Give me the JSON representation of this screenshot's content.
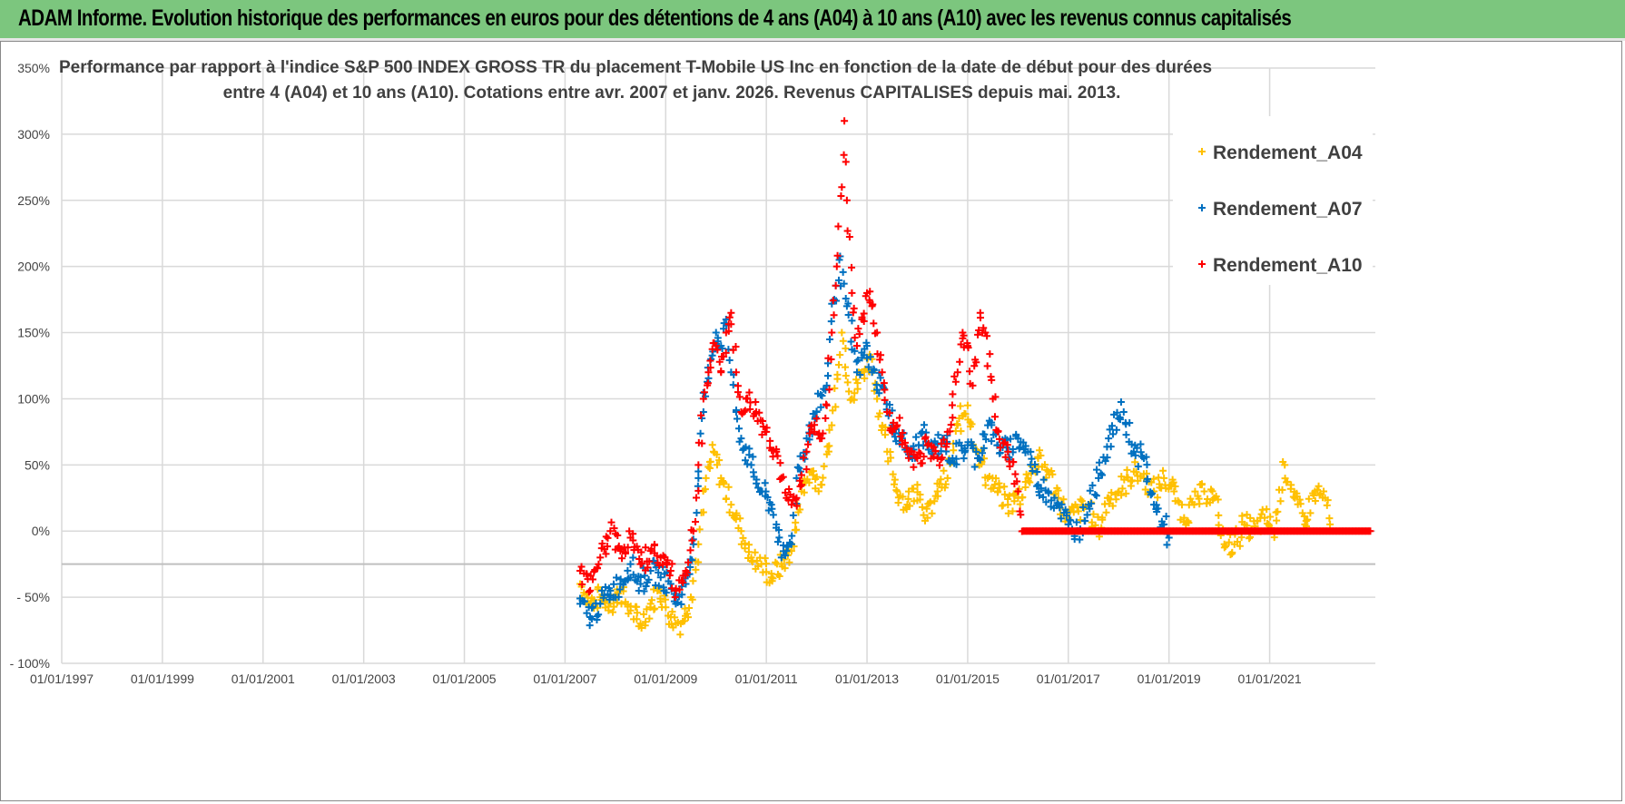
{
  "banner": {
    "title": "ADAM Informe. Evolution historique des performances en euros pour des détentions de 4 ans (A04) à 10 ans (A10) avec les revenus connus capitalisés"
  },
  "chart_data": {
    "type": "scatter",
    "title_lines": [
      "Performance par rapport à l'indice S&P 500 INDEX GROSS TR  du placement T-Mobile US Inc en fonction de la date de début pour des durées",
      "entre 4 (A04) et 10 ans (A10).  Cotations entre avr. 2007 et janv. 2026. Revenus CAPITALISES depuis mai. 2013."
    ],
    "xlabel": "",
    "ylabel": "",
    "xlim": [
      1997,
      2023.1
    ],
    "ylim": [
      -100,
      350
    ],
    "x_ticks": [
      {
        "v": 1997,
        "label": "01/01/1997"
      },
      {
        "v": 1999,
        "label": "01/01/1999"
      },
      {
        "v": 2001,
        "label": "01/01/2001"
      },
      {
        "v": 2003,
        "label": "01/01/2003"
      },
      {
        "v": 2005,
        "label": "01/01/2005"
      },
      {
        "v": 2007,
        "label": "01/01/2007"
      },
      {
        "v": 2009,
        "label": "01/01/2009"
      },
      {
        "v": 2011,
        "label": "01/01/2011"
      },
      {
        "v": 2013,
        "label": "01/01/2013"
      },
      {
        "v": 2015,
        "label": "01/01/2015"
      },
      {
        "v": 2017,
        "label": "01/01/2017"
      },
      {
        "v": 2019,
        "label": "01/01/2019"
      },
      {
        "v": 2021,
        "label": "01/01/2021"
      }
    ],
    "y_ticks": [
      {
        "v": 350,
        "label": "350%"
      },
      {
        "v": 300,
        "label": "300%"
      },
      {
        "v": 250,
        "label": "250%"
      },
      {
        "v": 200,
        "label": "200%"
      },
      {
        "v": 150,
        "label": "150%"
      },
      {
        "v": 100,
        "label": "100%"
      },
      {
        "v": 50,
        "label": "50%"
      },
      {
        "v": 0,
        "label": "0%"
      },
      {
        "v": -50,
        "label": "- 50%"
      },
      {
        "v": -100,
        "label": "- 100%"
      }
    ],
    "axis_cross_value": -25,
    "grid": true,
    "legend_position": "top-right",
    "series": [
      {
        "name": "Rendement_A04",
        "color": "#ffc000",
        "points": [
          [
            2007.3,
            -40
          ],
          [
            2007.5,
            -55
          ],
          [
            2007.7,
            -50
          ],
          [
            2007.9,
            -55
          ],
          [
            2008.1,
            -45
          ],
          [
            2008.3,
            -60
          ],
          [
            2008.5,
            -70
          ],
          [
            2008.7,
            -55
          ],
          [
            2008.9,
            -45
          ],
          [
            2009.1,
            -65
          ],
          [
            2009.3,
            -70
          ],
          [
            2009.5,
            -50
          ],
          [
            2009.65,
            -10
          ],
          [
            2009.8,
            40
          ],
          [
            2009.95,
            60
          ],
          [
            2010.1,
            40
          ],
          [
            2010.3,
            20
          ],
          [
            2010.5,
            0
          ],
          [
            2010.7,
            -20
          ],
          [
            2010.9,
            -25
          ],
          [
            2011.1,
            -35
          ],
          [
            2011.3,
            -25
          ],
          [
            2011.5,
            -15
          ],
          [
            2011.7,
            30
          ],
          [
            2011.9,
            45
          ],
          [
            2012.1,
            35
          ],
          [
            2012.3,
            80
          ],
          [
            2012.5,
            150
          ],
          [
            2012.7,
            100
          ],
          [
            2012.9,
            120
          ],
          [
            2013.1,
            130
          ],
          [
            2013.2,
            100
          ],
          [
            2013.4,
            60
          ],
          [
            2013.6,
            30
          ],
          [
            2013.8,
            20
          ],
          [
            2014.0,
            35
          ],
          [
            2014.2,
            10
          ],
          [
            2014.4,
            30
          ],
          [
            2014.6,
            40
          ],
          [
            2014.8,
            80
          ],
          [
            2015.0,
            95
          ],
          [
            2015.2,
            60
          ],
          [
            2015.4,
            40
          ],
          [
            2015.6,
            30
          ],
          [
            2015.8,
            20
          ],
          [
            2016.0,
            25
          ],
          [
            2016.2,
            40
          ],
          [
            2016.4,
            55
          ],
          [
            2016.6,
            45
          ],
          [
            2016.8,
            25
          ],
          [
            2017.0,
            10
          ],
          [
            2017.2,
            15
          ],
          [
            2017.4,
            20
          ],
          [
            2017.6,
            0
          ],
          [
            2017.8,
            25
          ],
          [
            2018.0,
            30
          ],
          [
            2018.3,
            45
          ],
          [
            2018.5,
            40
          ],
          [
            2018.7,
            30
          ],
          [
            2018.9,
            40
          ],
          [
            2019.1,
            30
          ],
          [
            2019.3,
            10
          ],
          [
            2019.5,
            20
          ],
          [
            2019.7,
            30
          ],
          [
            2019.9,
            25
          ],
          [
            2020.1,
            -10
          ],
          [
            2020.3,
            -10
          ],
          [
            2020.5,
            5
          ],
          [
            2020.7,
            0
          ],
          [
            2020.9,
            10
          ],
          [
            2021.1,
            0
          ],
          [
            2021.3,
            50
          ],
          [
            2021.5,
            25
          ],
          [
            2021.7,
            5
          ],
          [
            2021.9,
            30
          ],
          [
            2022.1,
            25
          ],
          [
            2022.2,
            5
          ]
        ]
      },
      {
        "name": "Rendement_A07",
        "color": "#0070c0",
        "points": [
          [
            2007.3,
            -55
          ],
          [
            2007.5,
            -65
          ],
          [
            2007.7,
            -55
          ],
          [
            2007.9,
            -45
          ],
          [
            2008.1,
            -40
          ],
          [
            2008.3,
            -25
          ],
          [
            2008.5,
            -40
          ],
          [
            2008.7,
            -30
          ],
          [
            2008.9,
            -35
          ],
          [
            2009.1,
            -40
          ],
          [
            2009.2,
            -55
          ],
          [
            2009.4,
            -40
          ],
          [
            2009.55,
            -10
          ],
          [
            2009.65,
            40
          ],
          [
            2009.75,
            90
          ],
          [
            2009.9,
            130
          ],
          [
            2010.0,
            150
          ],
          [
            2010.1,
            140
          ],
          [
            2010.2,
            160
          ],
          [
            2010.3,
            120
          ],
          [
            2010.4,
            90
          ],
          [
            2010.5,
            70
          ],
          [
            2010.7,
            50
          ],
          [
            2010.9,
            30
          ],
          [
            2011.1,
            20
          ],
          [
            2011.2,
            5
          ],
          [
            2011.3,
            -20
          ],
          [
            2011.4,
            -15
          ],
          [
            2011.5,
            -10
          ],
          [
            2011.6,
            40
          ],
          [
            2011.8,
            70
          ],
          [
            2012.0,
            90
          ],
          [
            2012.2,
            110
          ],
          [
            2012.35,
            175
          ],
          [
            2012.45,
            205
          ],
          [
            2012.6,
            170
          ],
          [
            2012.8,
            120
          ],
          [
            2013.0,
            140
          ],
          [
            2013.1,
            120
          ],
          [
            2013.3,
            110
          ],
          [
            2013.5,
            80
          ],
          [
            2013.7,
            70
          ],
          [
            2013.9,
            55
          ],
          [
            2014.1,
            75
          ],
          [
            2014.3,
            60
          ],
          [
            2014.5,
            70
          ],
          [
            2014.7,
            55
          ],
          [
            2015.0,
            65
          ],
          [
            2015.2,
            55
          ],
          [
            2015.4,
            80
          ],
          [
            2015.6,
            65
          ],
          [
            2015.8,
            60
          ],
          [
            2016.0,
            70
          ],
          [
            2016.2,
            60
          ],
          [
            2016.4,
            35
          ],
          [
            2016.6,
            30
          ],
          [
            2016.8,
            20
          ],
          [
            2017.0,
            5
          ],
          [
            2017.2,
            0
          ],
          [
            2017.4,
            20
          ],
          [
            2017.6,
            40
          ],
          [
            2017.8,
            70
          ],
          [
            2018.0,
            85
          ],
          [
            2018.1,
            90
          ],
          [
            2018.3,
            60
          ],
          [
            2018.5,
            55
          ],
          [
            2018.7,
            20
          ],
          [
            2018.9,
            5
          ],
          [
            2019.0,
            -5
          ]
        ]
      },
      {
        "name": "Rendement_A10",
        "color": "#ff0000",
        "points": [
          [
            2007.3,
            -30
          ],
          [
            2007.5,
            -45
          ],
          [
            2007.7,
            -20
          ],
          [
            2007.9,
            0
          ],
          [
            2008.1,
            -15
          ],
          [
            2008.3,
            -5
          ],
          [
            2008.5,
            -25
          ],
          [
            2008.7,
            -15
          ],
          [
            2008.9,
            -20
          ],
          [
            2009.1,
            -30
          ],
          [
            2009.2,
            -45
          ],
          [
            2009.4,
            -30
          ],
          [
            2009.55,
            0
          ],
          [
            2009.65,
            50
          ],
          [
            2009.75,
            100
          ],
          [
            2009.85,
            120
          ],
          [
            2010.0,
            140
          ],
          [
            2010.1,
            120
          ],
          [
            2010.2,
            150
          ],
          [
            2010.3,
            165
          ],
          [
            2010.4,
            120
          ],
          [
            2010.5,
            90
          ],
          [
            2010.6,
            100
          ],
          [
            2010.8,
            90
          ],
          [
            2011.0,
            75
          ],
          [
            2011.2,
            60
          ],
          [
            2011.3,
            40
          ],
          [
            2011.4,
            25
          ],
          [
            2011.5,
            20
          ],
          [
            2011.6,
            25
          ],
          [
            2011.7,
            35
          ],
          [
            2011.8,
            60
          ],
          [
            2011.9,
            80
          ],
          [
            2012.0,
            85
          ],
          [
            2012.1,
            70
          ],
          [
            2012.2,
            95
          ],
          [
            2012.3,
            150
          ],
          [
            2012.4,
            200
          ],
          [
            2012.5,
            260
          ],
          [
            2012.55,
            310
          ],
          [
            2012.6,
            250
          ],
          [
            2012.7,
            180
          ],
          [
            2012.8,
            140
          ],
          [
            2012.9,
            160
          ],
          [
            2013.0,
            180
          ],
          [
            2013.1,
            170
          ],
          [
            2013.2,
            150
          ],
          [
            2013.3,
            120
          ],
          [
            2013.4,
            90
          ],
          [
            2013.5,
            75
          ],
          [
            2013.6,
            80
          ],
          [
            2013.8,
            60
          ],
          [
            2014.0,
            55
          ],
          [
            2014.2,
            65
          ],
          [
            2014.4,
            55
          ],
          [
            2014.6,
            75
          ],
          [
            2014.8,
            120
          ],
          [
            2014.9,
            150
          ],
          [
            2015.0,
            140
          ],
          [
            2015.1,
            110
          ],
          [
            2015.25,
            165
          ],
          [
            2015.35,
            150
          ],
          [
            2015.5,
            100
          ],
          [
            2015.6,
            75
          ],
          [
            2015.8,
            60
          ],
          [
            2016.0,
            30
          ],
          [
            2016.1,
            0
          ],
          [
            2016.5,
            0
          ],
          [
            2017.0,
            0
          ],
          [
            2017.5,
            0
          ],
          [
            2018.0,
            0
          ],
          [
            2018.5,
            0
          ],
          [
            2019.0,
            0
          ],
          [
            2019.5,
            0
          ],
          [
            2020.0,
            0
          ],
          [
            2020.5,
            0
          ],
          [
            2021.0,
            0
          ],
          [
            2021.5,
            0
          ],
          [
            2022.0,
            0
          ],
          [
            2022.5,
            0
          ],
          [
            2023.0,
            0
          ]
        ]
      }
    ]
  }
}
